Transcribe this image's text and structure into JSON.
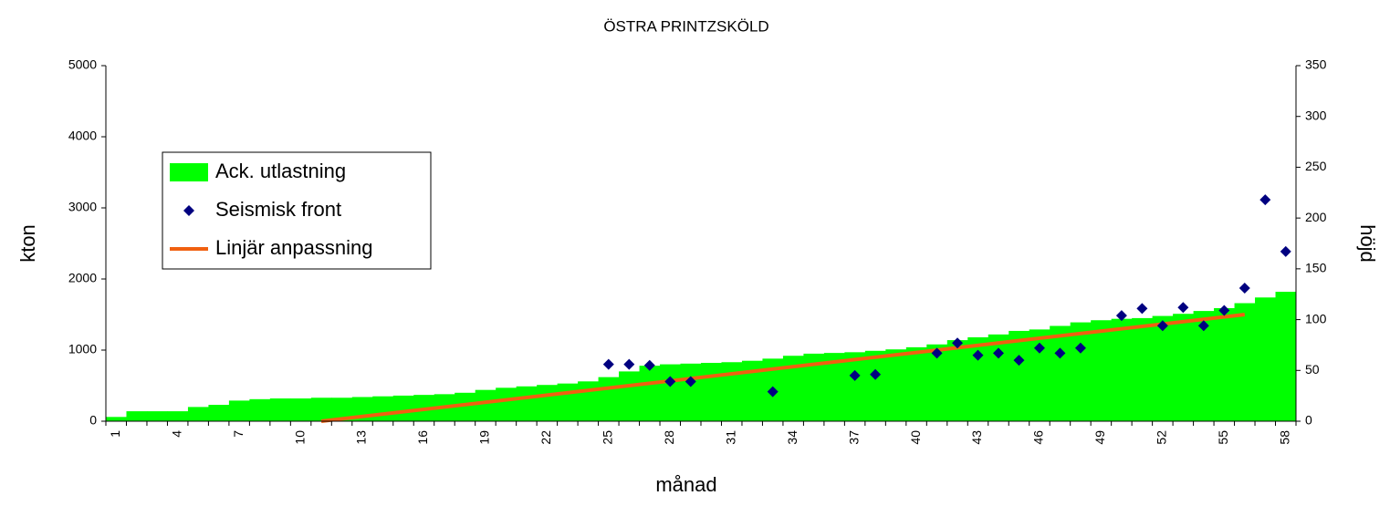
{
  "chart_data": {
    "type": "combo",
    "title": "ÖSTRA PRINTZSKÖLD",
    "xlabel": "månad",
    "ylabel": "kton",
    "y2label": "höjd",
    "categories": [
      1,
      null,
      null,
      4,
      null,
      null,
      7,
      null,
      null,
      10,
      null,
      null,
      13,
      null,
      null,
      16,
      null,
      null,
      19,
      null,
      null,
      22,
      null,
      null,
      25,
      null,
      null,
      28,
      null,
      null,
      31,
      null,
      null,
      34,
      null,
      null,
      37,
      null,
      null,
      40,
      null,
      null,
      43,
      null,
      null,
      46,
      null,
      null,
      49,
      null,
      null,
      52,
      null,
      null,
      55,
      null,
      null,
      58
    ],
    "ylim": [
      0,
      5000
    ],
    "yticks": [
      0,
      1000,
      2000,
      3000,
      4000,
      5000
    ],
    "y2lim": [
      0,
      350
    ],
    "y2ticks": [
      0,
      50,
      100,
      150,
      200,
      250,
      300,
      350
    ],
    "legend": "left",
    "series": [
      {
        "name": "Ack. utlastning",
        "type": "area",
        "color": "#00ff00",
        "values": [
          60,
          140,
          140,
          140,
          200,
          230,
          290,
          310,
          320,
          320,
          330,
          330,
          340,
          350,
          360,
          370,
          380,
          400,
          440,
          470,
          490,
          510,
          530,
          560,
          620,
          700,
          780,
          800,
          810,
          820,
          830,
          850,
          880,
          920,
          950,
          960,
          970,
          990,
          1010,
          1040,
          1080,
          1140,
          1180,
          1220,
          1270,
          1290,
          1340,
          1390,
          1420,
          1440,
          1450,
          1480,
          1510,
          1550,
          1590,
          1660,
          1740,
          1820
        ]
      },
      {
        "name": "Seismisk front",
        "type": "scatter",
        "color": "#000080",
        "axis": "y2",
        "values": [
          null,
          null,
          null,
          null,
          null,
          null,
          null,
          null,
          null,
          null,
          null,
          null,
          null,
          null,
          null,
          null,
          null,
          null,
          null,
          null,
          null,
          null,
          null,
          null,
          56,
          56,
          55,
          39,
          39,
          null,
          null,
          null,
          29,
          null,
          null,
          null,
          45,
          46,
          null,
          null,
          67,
          77,
          65,
          67,
          60,
          72,
          67,
          72,
          null,
          104,
          111,
          94,
          112,
          94,
          109,
          131,
          218,
          167
        ]
      },
      {
        "name": "Linjär anpassning",
        "type": "line",
        "color": "#f06010",
        "axis": "y2",
        "x": [
          11,
          56
        ],
        "values": [
          0,
          105
        ]
      }
    ]
  }
}
